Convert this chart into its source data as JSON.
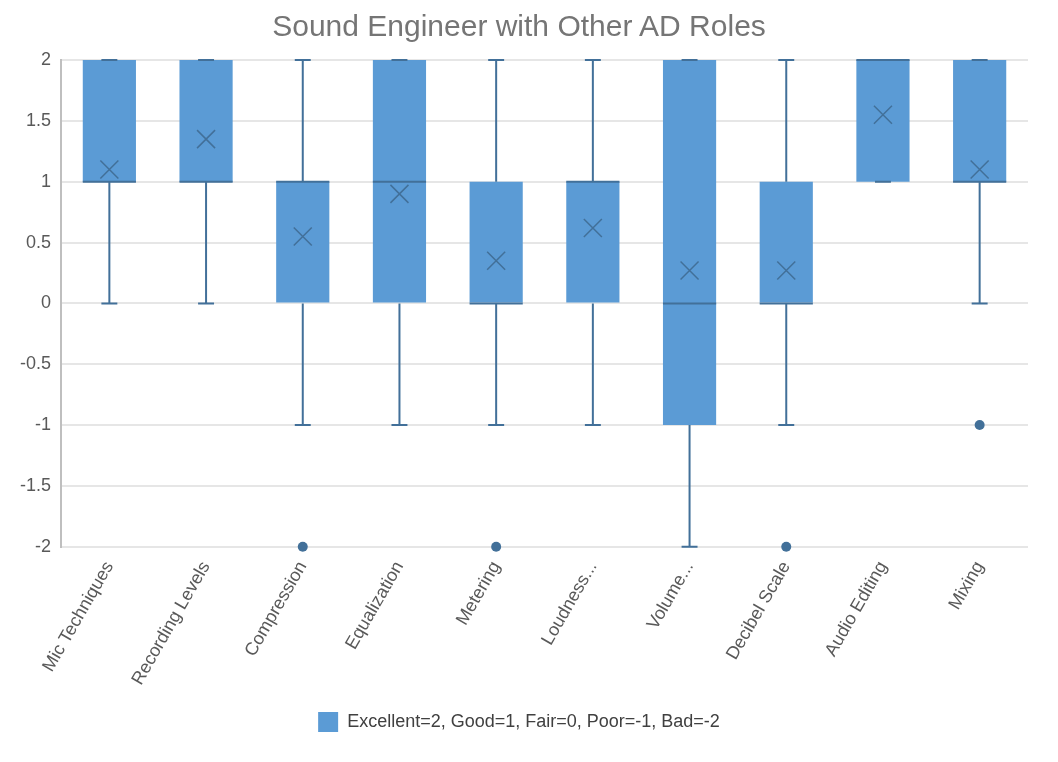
{
  "chart_data": {
    "type": "box",
    "title": "Sound Engineer with Other AD Roles",
    "categories": [
      "Mic Techniques",
      "Recording Levels",
      "Compression",
      "Equalization",
      "Metering",
      "Loudness...",
      "Volume...",
      "Decibel Scale",
      "Audio Editing",
      "Mixing"
    ],
    "series": [
      {
        "name": "Excellent=2, Good=1, Fair=0, Poor=-1, Bad=-2",
        "color": "#5b9bd5",
        "boxes": [
          {
            "low": 0,
            "q1": 1,
            "median": 1,
            "q3": 2,
            "high": 2,
            "mean": 1.1
          },
          {
            "low": 0,
            "q1": 1,
            "median": 1,
            "q3": 2,
            "high": 2,
            "mean": 1.35
          },
          {
            "low": -1,
            "q1": 0,
            "median": 1,
            "q3": 1,
            "high": 2,
            "mean": 0.55,
            "outliers": [
              -2
            ]
          },
          {
            "low": -1,
            "q1": 0,
            "median": 1,
            "q3": 2,
            "high": 2,
            "mean": 0.9
          },
          {
            "low": -1,
            "q1": 0,
            "median": 0,
            "q3": 1,
            "high": 2,
            "mean": 0.35,
            "outliers": [
              -2
            ]
          },
          {
            "low": -1,
            "q1": 0,
            "median": 1,
            "q3": 1,
            "high": 2,
            "mean": 0.62
          },
          {
            "low": -2,
            "q1": -1,
            "median": 0,
            "q3": 2,
            "high": 2,
            "mean": 0.27
          },
          {
            "low": -1,
            "q1": 0,
            "median": 0,
            "q3": 1,
            "high": 2,
            "mean": 0.27,
            "outliers": [
              -2
            ]
          },
          {
            "low": 1,
            "q1": 1,
            "median": 2,
            "q3": 2,
            "high": 2,
            "mean": 1.55
          },
          {
            "low": 0,
            "q1": 1,
            "median": 1,
            "q3": 2,
            "high": 2,
            "mean": 1.1,
            "outliers": [
              -1
            ]
          }
        ]
      }
    ],
    "ylim": [
      -2,
      2
    ],
    "yticks": [
      -2,
      -1.5,
      -1,
      -0.5,
      0,
      0.5,
      1,
      1.5,
      2
    ],
    "grid": "y",
    "legend": "bottom"
  }
}
